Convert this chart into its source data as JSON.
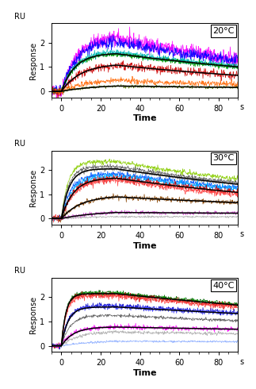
{
  "panels": [
    {
      "temp_label": "20°C",
      "ylim": [
        -0.25,
        2.8
      ],
      "yticks": [
        0,
        1,
        2
      ],
      "curves": [
        {
          "color": "#ff00ff",
          "peak": 2.3,
          "noise": 0.14,
          "kon": 3.5,
          "koff": 0.008,
          "assoc_end": 28
        },
        {
          "color": "#cc00ff",
          "peak": 2.2,
          "noise": 0.12,
          "kon": 3.5,
          "koff": 0.009,
          "assoc_end": 28
        },
        {
          "color": "#0000ff",
          "peak": 2.1,
          "noise": 0.12,
          "kon": 3.5,
          "koff": 0.008,
          "assoc_end": 28
        },
        {
          "color": "#00bbbb",
          "peak": 1.65,
          "noise": 0.06,
          "kon": 4.0,
          "koff": 0.007,
          "assoc_end": 28
        },
        {
          "color": "#009999",
          "peak": 1.58,
          "noise": 0.05,
          "kon": 4.0,
          "koff": 0.007,
          "assoc_end": 28
        },
        {
          "color": "#009900",
          "peak": 1.55,
          "noise": 0.05,
          "kon": 4.0,
          "koff": 0.007,
          "assoc_end": 28
        },
        {
          "color": "#cc0000",
          "peak": 1.15,
          "noise": 0.09,
          "kon": 2.8,
          "koff": 0.008,
          "assoc_end": 28
        },
        {
          "color": "#ff6600",
          "peak": 0.52,
          "noise": 0.06,
          "kon": 2.0,
          "koff": 0.007,
          "assoc_end": 28
        },
        {
          "color": "#557700",
          "peak": 0.28,
          "noise": 0.03,
          "kon": 1.5,
          "koff": 0.005,
          "assoc_end": 28
        }
      ],
      "fit_curves": [
        {
          "color": "#000000",
          "peak": 1.58,
          "kon": 4.0,
          "koff": 0.007,
          "assoc_end": 28
        },
        {
          "color": "#000000",
          "peak": 1.15,
          "kon": 2.8,
          "koff": 0.008,
          "assoc_end": 28
        },
        {
          "color": "#000000",
          "peak": 0.28,
          "kon": 1.5,
          "koff": 0.005,
          "assoc_end": 28
        }
      ]
    },
    {
      "temp_label": "30°C",
      "ylim": [
        -0.25,
        2.8
      ],
      "yticks": [
        0,
        1,
        2
      ],
      "curves": [
        {
          "color": "#88cc00",
          "peak": 2.35,
          "noise": 0.05,
          "kon": 8.0,
          "koff": 0.006,
          "assoc_end": 28
        },
        {
          "color": "#555555",
          "peak": 2.15,
          "noise": 0.04,
          "kon": 7.5,
          "koff": 0.006,
          "assoc_end": 28
        },
        {
          "color": "#888888",
          "peak": 2.05,
          "noise": 0.04,
          "kon": 7.0,
          "koff": 0.006,
          "assoc_end": 28
        },
        {
          "color": "#0055ff",
          "peak": 1.85,
          "noise": 0.06,
          "kon": 5.5,
          "koff": 0.006,
          "assoc_end": 28
        },
        {
          "color": "#00aaff",
          "peak": 1.78,
          "noise": 0.06,
          "kon": 5.0,
          "koff": 0.006,
          "assoc_end": 28
        },
        {
          "color": "#cc0000",
          "peak": 1.68,
          "noise": 0.07,
          "kon": 4.5,
          "koff": 0.007,
          "assoc_end": 28
        },
        {
          "color": "#ff4444",
          "peak": 1.62,
          "noise": 0.07,
          "kon": 4.5,
          "koff": 0.008,
          "assoc_end": 28
        },
        {
          "color": "#884400",
          "peak": 0.95,
          "noise": 0.05,
          "kon": 2.8,
          "koff": 0.005,
          "assoc_end": 28
        },
        {
          "color": "#cc44cc",
          "peak": 0.32,
          "noise": 0.04,
          "kon": 1.5,
          "koff": 0.002,
          "assoc_end": 28
        },
        {
          "color": "#aaaaaa",
          "peak": 0.12,
          "noise": 0.02,
          "kon": 1.0,
          "koff": 0.001,
          "assoc_end": 28
        }
      ],
      "fit_curves": [
        {
          "color": "#000000",
          "peak": 2.05,
          "kon": 7.0,
          "koff": 0.006,
          "assoc_end": 28
        },
        {
          "color": "#000000",
          "peak": 1.68,
          "kon": 4.5,
          "koff": 0.007,
          "assoc_end": 28
        },
        {
          "color": "#000000",
          "peak": 0.95,
          "kon": 2.8,
          "koff": 0.005,
          "assoc_end": 28
        },
        {
          "color": "#000000",
          "peak": 0.32,
          "kon": 1.5,
          "koff": 0.002,
          "assoc_end": 28
        }
      ]
    },
    {
      "temp_label": "40°C",
      "ylim": [
        -0.25,
        2.8
      ],
      "yticks": [
        0,
        1,
        2
      ],
      "curves": [
        {
          "color": "#006600",
          "peak": 2.2,
          "noise": 0.04,
          "kon": 12.0,
          "koff": 0.004,
          "assoc_end": 28
        },
        {
          "color": "#00aa00",
          "peak": 2.15,
          "noise": 0.04,
          "kon": 12.0,
          "koff": 0.004,
          "assoc_end": 28
        },
        {
          "color": "#cc0000",
          "peak": 2.1,
          "noise": 0.06,
          "kon": 12.0,
          "koff": 0.004,
          "assoc_end": 28
        },
        {
          "color": "#ff4444",
          "peak": 2.05,
          "noise": 0.06,
          "kon": 11.0,
          "koff": 0.004,
          "assoc_end": 28
        },
        {
          "color": "#0000cc",
          "peak": 1.65,
          "noise": 0.05,
          "kon": 8.0,
          "koff": 0.003,
          "assoc_end": 28
        },
        {
          "color": "#4444ff",
          "peak": 1.6,
          "noise": 0.05,
          "kon": 8.0,
          "koff": 0.003,
          "assoc_end": 28
        },
        {
          "color": "#555555",
          "peak": 1.25,
          "noise": 0.03,
          "kon": 6.5,
          "koff": 0.003,
          "assoc_end": 28
        },
        {
          "color": "#ff00ff",
          "peak": 0.78,
          "noise": 0.05,
          "kon": 4.5,
          "koff": 0.002,
          "assoc_end": 28
        },
        {
          "color": "#aaaaaa",
          "peak": 0.58,
          "noise": 0.03,
          "kon": 3.5,
          "koff": 0.002,
          "assoc_end": 28
        },
        {
          "color": "#88aaff",
          "peak": 0.22,
          "noise": 0.02,
          "kon": 1.8,
          "koff": 0.001,
          "assoc_end": 28
        }
      ],
      "fit_curves": [
        {
          "color": "#000000",
          "peak": 2.15,
          "kon": 12.0,
          "koff": 0.004,
          "assoc_end": 28
        },
        {
          "color": "#000000",
          "peak": 1.6,
          "kon": 8.0,
          "koff": 0.003,
          "assoc_end": 28
        },
        {
          "color": "#000000",
          "peak": 0.78,
          "kon": 4.5,
          "koff": 0.002,
          "assoc_end": 28
        }
      ]
    }
  ],
  "xmin": -5,
  "xmax": 90,
  "xticks": [
    0,
    20,
    40,
    60,
    80
  ],
  "xlabel": "Time",
  "ylabel": "Response",
  "ru_label": "RU",
  "s_label": "s"
}
